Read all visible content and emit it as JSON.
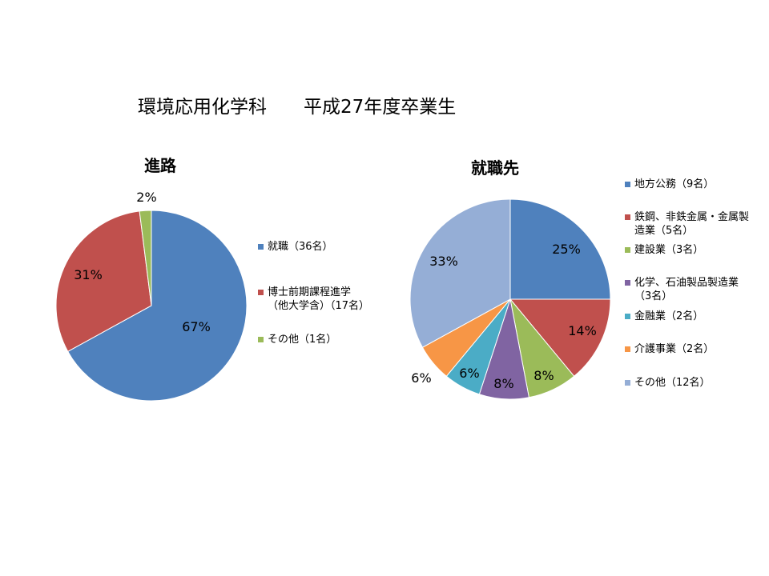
{
  "page": {
    "title": "環境応用化学科　　平成27年度卒業生"
  },
  "chart_data": [
    {
      "type": "pie",
      "title": "進路",
      "slices": [
        {
          "label": "就職（36名）",
          "label_lines": [
            "就職（36名）"
          ],
          "value": 67,
          "percent_label": "67%",
          "color": "#4F81BD"
        },
        {
          "label": "博士前期課程進学（他大学含）（17名）",
          "label_lines": [
            "博士前期課程進学",
            "（他大学含）（17名）"
          ],
          "value": 31,
          "percent_label": "31%",
          "color": "#C0504D"
        },
        {
          "label": "その他（1名）",
          "label_lines": [
            "その他（1名）"
          ],
          "value": 2,
          "percent_label": "2%",
          "color": "#9BBB59"
        }
      ],
      "legend_position": "right"
    },
    {
      "type": "pie",
      "title": "就職先",
      "slices": [
        {
          "label": "地方公務（9名）",
          "label_lines": [
            "地方公務（9名）"
          ],
          "value": 25,
          "percent_label": "25%",
          "color": "#4F81BD"
        },
        {
          "label": "鉄鋼、非鉄金属・金属製造業（5名）",
          "label_lines": [
            "鉄鋼、非鉄金属・金属製",
            "造業（5名）"
          ],
          "value": 14,
          "percent_label": "14%",
          "color": "#C0504D"
        },
        {
          "label": "建設業（3名）",
          "label_lines": [
            "建設業（3名）"
          ],
          "value": 8,
          "percent_label": "8%",
          "color": "#9BBB59"
        },
        {
          "label": "化学、石油製品製造業（3名）",
          "label_lines": [
            "化学、石油製品製造業",
            "（3名）"
          ],
          "value": 8,
          "percent_label": "8%",
          "color": "#8064A2"
        },
        {
          "label": "金融業（2名）",
          "label_lines": [
            "金融業（2名）"
          ],
          "value": 6,
          "percent_label": "6%",
          "color": "#4BACC6"
        },
        {
          "label": "介護事業（2名）",
          "label_lines": [
            "介護事業（2名）"
          ],
          "value": 6,
          "percent_label": "6%",
          "color": "#F79646"
        },
        {
          "label": "その他（12名）",
          "label_lines": [
            "その他（12名）"
          ],
          "value": 33,
          "percent_label": "33%",
          "color": "#95AED6"
        }
      ],
      "legend_position": "right"
    }
  ]
}
